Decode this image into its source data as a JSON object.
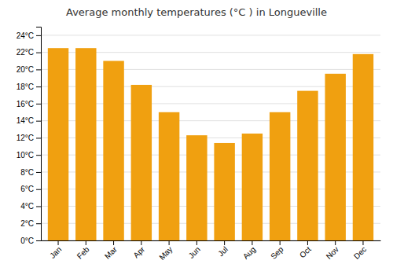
{
  "chart_data": {
    "type": "bar",
    "title": "Average monthly temperatures (°C ) in Longueville",
    "categories": [
      "Jan",
      "Feb",
      "Mar",
      "Apr",
      "May",
      "Jun",
      "Jul",
      "Aug",
      "Sep",
      "Oct",
      "Nov",
      "Dec"
    ],
    "values": [
      22.5,
      22.5,
      21.0,
      18.2,
      15.0,
      12.3,
      11.4,
      12.5,
      15.0,
      17.5,
      19.5,
      21.8
    ],
    "color": "#F0A010",
    "ylim": [
      0,
      25
    ],
    "yticks": [
      {
        "value": 0,
        "label": "0°C"
      },
      {
        "value": 2,
        "label": "2°C"
      },
      {
        "value": 4,
        "label": "4°C"
      },
      {
        "value": 6,
        "label": "6°C"
      },
      {
        "value": 8,
        "label": "8°C"
      },
      {
        "value": 10,
        "label": "10°C"
      },
      {
        "value": 12,
        "label": "12°C"
      },
      {
        "value": 14,
        "label": "14°C"
      },
      {
        "value": 16,
        "label": "16°C"
      },
      {
        "value": 18,
        "label": "18°C"
      },
      {
        "value": 20,
        "label": "20°C"
      },
      {
        "value": 22,
        "label": "22°C"
      },
      {
        "value": 24,
        "label": "24°C"
      }
    ],
    "grid": true
  }
}
